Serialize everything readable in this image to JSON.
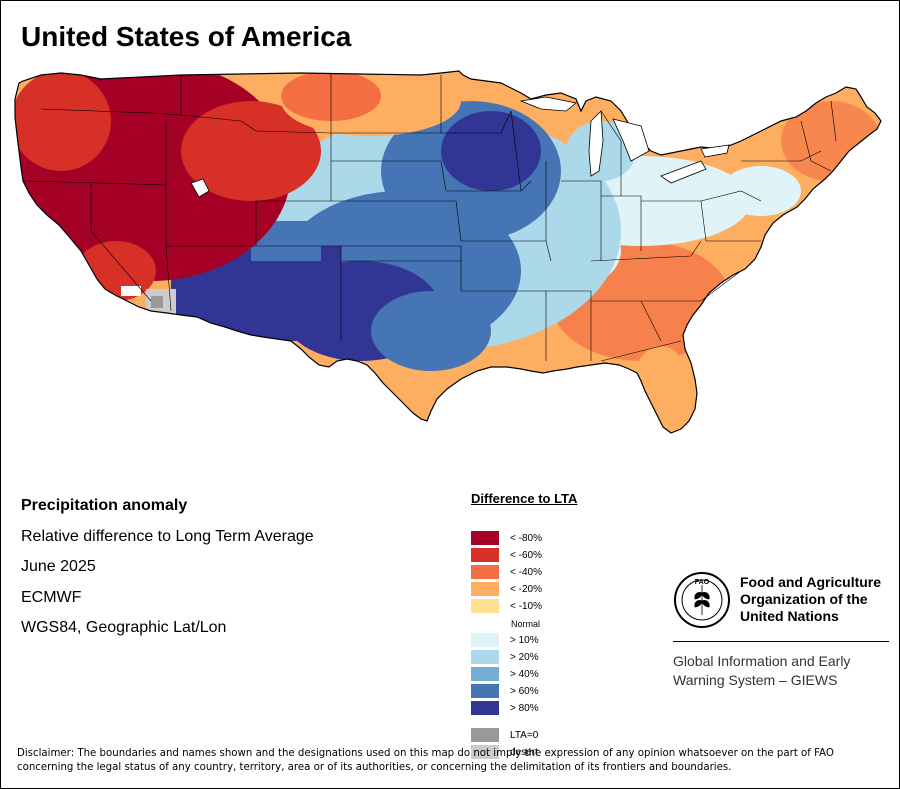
{
  "title": "United States of America",
  "info": {
    "title": "Precipitation anomaly",
    "subtitle": "Relative difference to Long Term Average",
    "date": "June 2025",
    "source": "ECMWF",
    "projection": "WGS84, Geographic Lat/Lon"
  },
  "legend": {
    "title": "Difference to LTA",
    "classes": [
      {
        "label": "< -80%",
        "color": "#a50026"
      },
      {
        "label": "< -60%",
        "color": "#d73027"
      },
      {
        "label": "< -40%",
        "color": "#f46d43"
      },
      {
        "label": "< -20%",
        "color": "#fdae61"
      },
      {
        "label": "< -10%",
        "color": "#fee090"
      },
      {
        "label": "Normal",
        "color": "#ffffff"
      },
      {
        "label": "> 10%",
        "color": "#e0f3f8"
      },
      {
        "label": "> 20%",
        "color": "#abd9e9"
      },
      {
        "label": "> 40%",
        "color": "#74add1"
      },
      {
        "label": "> 60%",
        "color": "#4575b4"
      },
      {
        "label": "> 80%",
        "color": "#313695"
      }
    ],
    "extra": [
      {
        "label": "LTA=0",
        "color": "#999999"
      },
      {
        "label": "desert",
        "color": "#cccccc"
      }
    ]
  },
  "organization": {
    "logo_text": "FAO",
    "name": "Food and Agriculture Organization of the United Nations",
    "system": "Global Information and Early Warning System – GIEWS"
  },
  "disclaimer": "Disclaimer: The boundaries and names shown and the designations used on this map do not imply the expression of any opinion whatsoever on the part of FAO concerning the legal status of any country, territory, area or of its authorities, or concerning the delimitation of its frontiers and boundaries."
}
